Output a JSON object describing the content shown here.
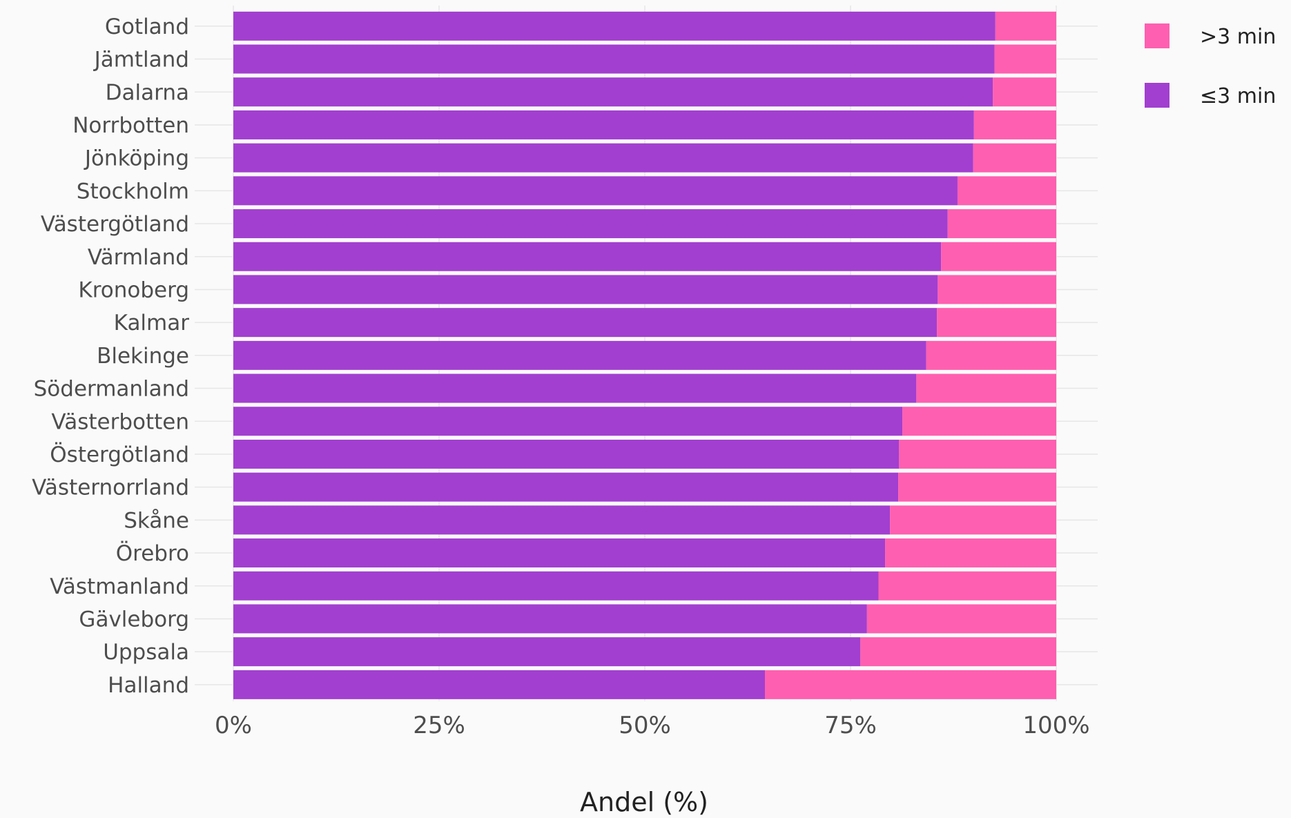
{
  "chart_data": {
    "type": "bar",
    "orientation": "horizontal",
    "stacked": true,
    "categories": [
      "Gotland",
      "Jämtland",
      "Dalarna",
      "Norrbotten",
      "Jönköping",
      "Stockholm",
      "Västergötland",
      "Värmland",
      "Kronoberg",
      "Kalmar",
      "Blekinge",
      "Södermanland",
      "Västerbotten",
      "Östergötland",
      "Västernorrland",
      "Skåne",
      "Örebro",
      "Västmanland",
      "Gävleborg",
      "Uppsala",
      "Halland"
    ],
    "series": [
      {
        "name": "≤3 min",
        "color": "#a23fd0",
        "values": [
          92.6,
          92.5,
          92.3,
          90.0,
          89.9,
          88.0,
          86.8,
          86.0,
          85.6,
          85.5,
          84.2,
          83.0,
          81.3,
          80.9,
          80.8,
          79.8,
          79.2,
          78.4,
          77.0,
          76.2,
          64.6
        ]
      },
      {
        "name": ">3 min",
        "color": "#ff5fb0",
        "values": [
          7.4,
          7.5,
          7.7,
          10.0,
          10.1,
          12.0,
          13.2,
          14.0,
          14.4,
          14.5,
          15.8,
          17.0,
          18.7,
          19.1,
          19.2,
          20.2,
          20.8,
          21.6,
          23.0,
          23.8,
          35.4
        ]
      }
    ],
    "xticks": [
      "0%",
      "25%",
      "50%",
      "75%",
      "100%"
    ],
    "xlim": [
      0,
      100
    ],
    "xlabel": "Andel (%)",
    "ylabel": "",
    "legend": {
      "position": "top-right",
      "items": [
        {
          "label": ">3 min",
          "color": "#ff5fb0"
        },
        {
          "label": "≤3 min",
          "color": "#a23fd0"
        }
      ]
    },
    "grid": true
  }
}
